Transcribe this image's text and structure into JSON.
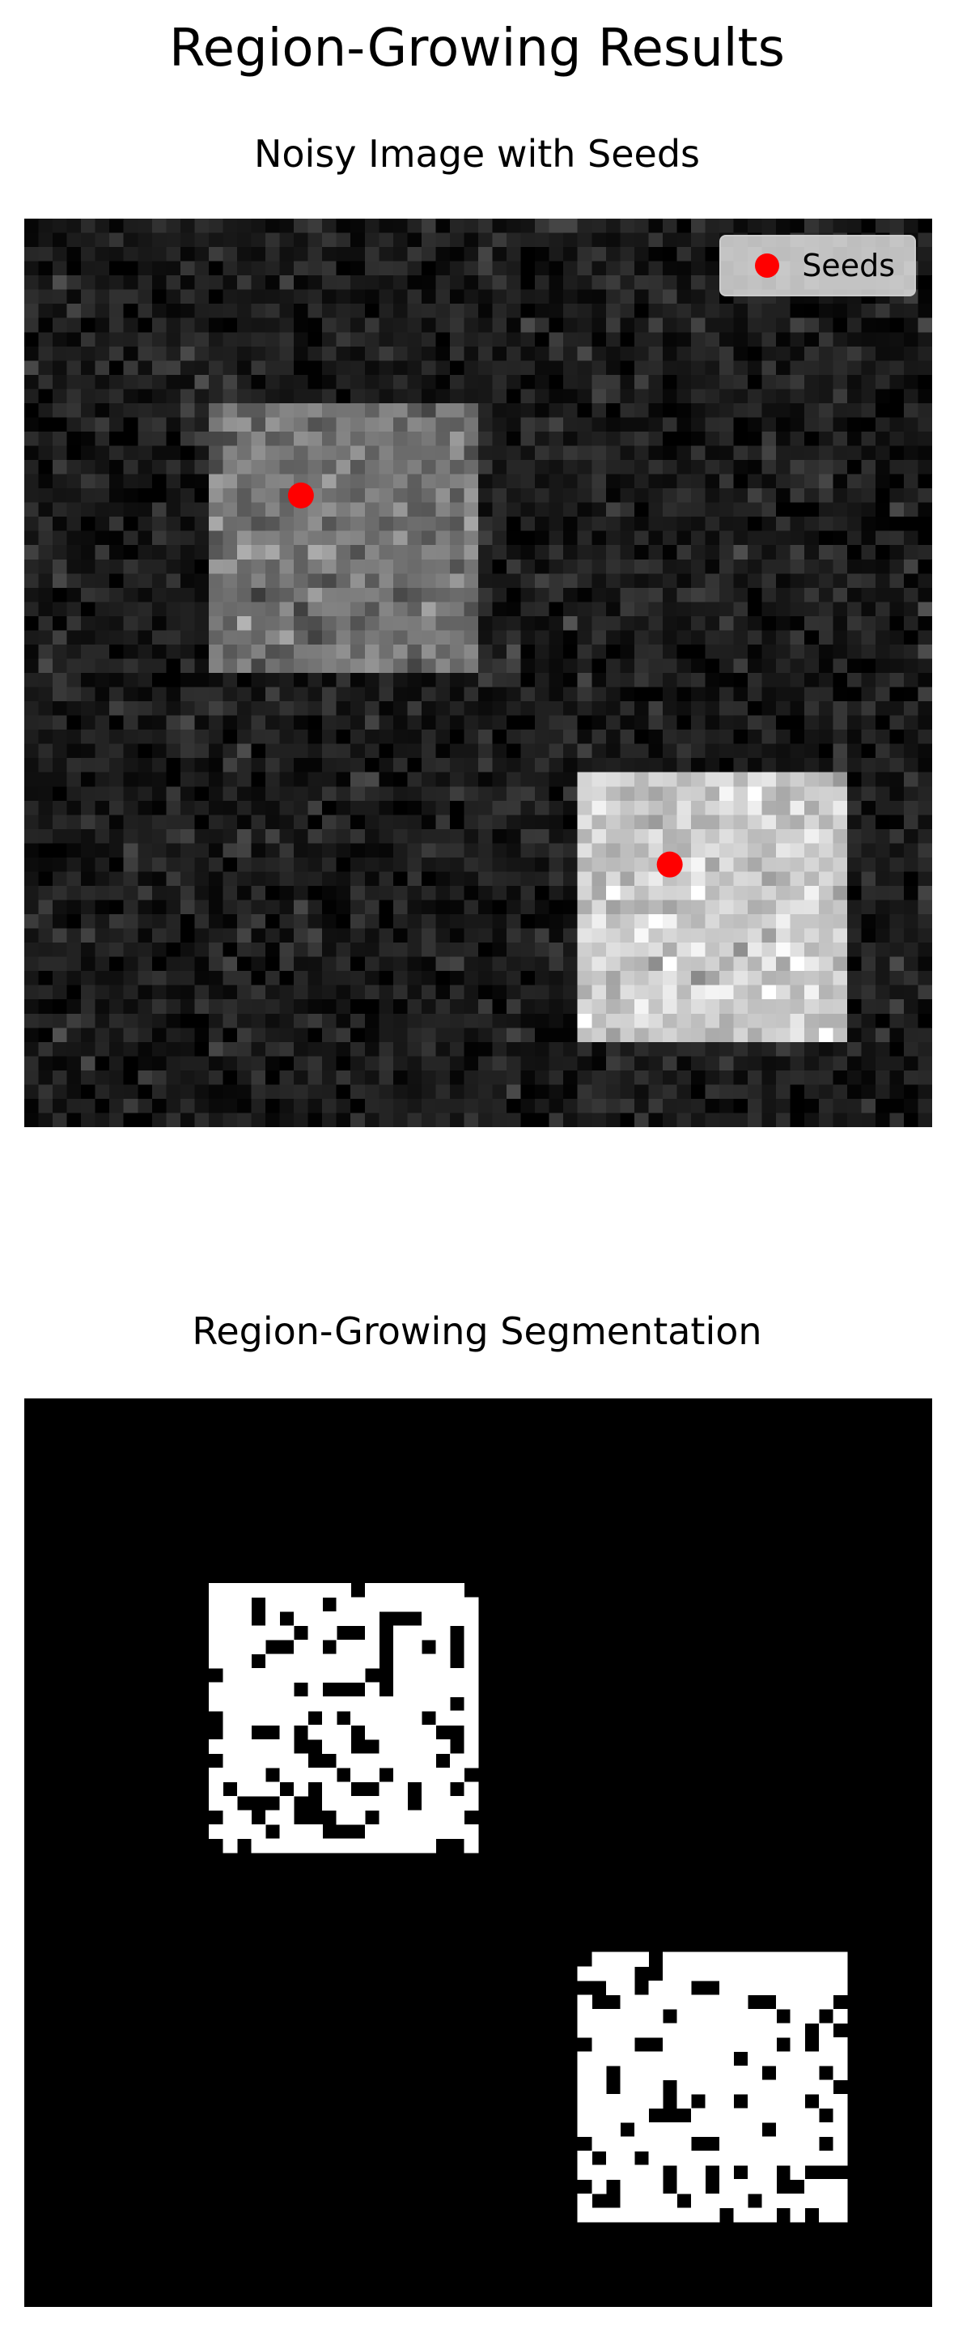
{
  "figure": {
    "title": "Region-Growing Results"
  },
  "panels": [
    {
      "title": "Noisy Image with Seeds",
      "grid": 64,
      "background_intensity": 0.1,
      "regions": [
        {
          "row_start": 13,
          "row_end": 32,
          "col_start": 13,
          "col_end": 32,
          "intensity": 0.45
        },
        {
          "row_start": 39,
          "row_end": 58,
          "col_start": 39,
          "col_end": 58,
          "intensity": 0.8
        }
      ],
      "seeds": [
        {
          "row": 19,
          "col": 19
        },
        {
          "row": 45,
          "col": 45
        }
      ],
      "legend": {
        "label": "Seeds",
        "color": "#ff0000",
        "position": "upper-right"
      }
    },
    {
      "title": "Region-Growing Segmentation",
      "grid": 64,
      "background_value": 0,
      "regions": [
        {
          "row_start": 13,
          "row_end": 32,
          "col_start": 13,
          "col_end": 32,
          "fill_fraction": 0.78
        },
        {
          "row_start": 39,
          "row_end": 58,
          "col_start": 39,
          "col_end": 58,
          "fill_fraction": 0.8
        }
      ]
    }
  ]
}
